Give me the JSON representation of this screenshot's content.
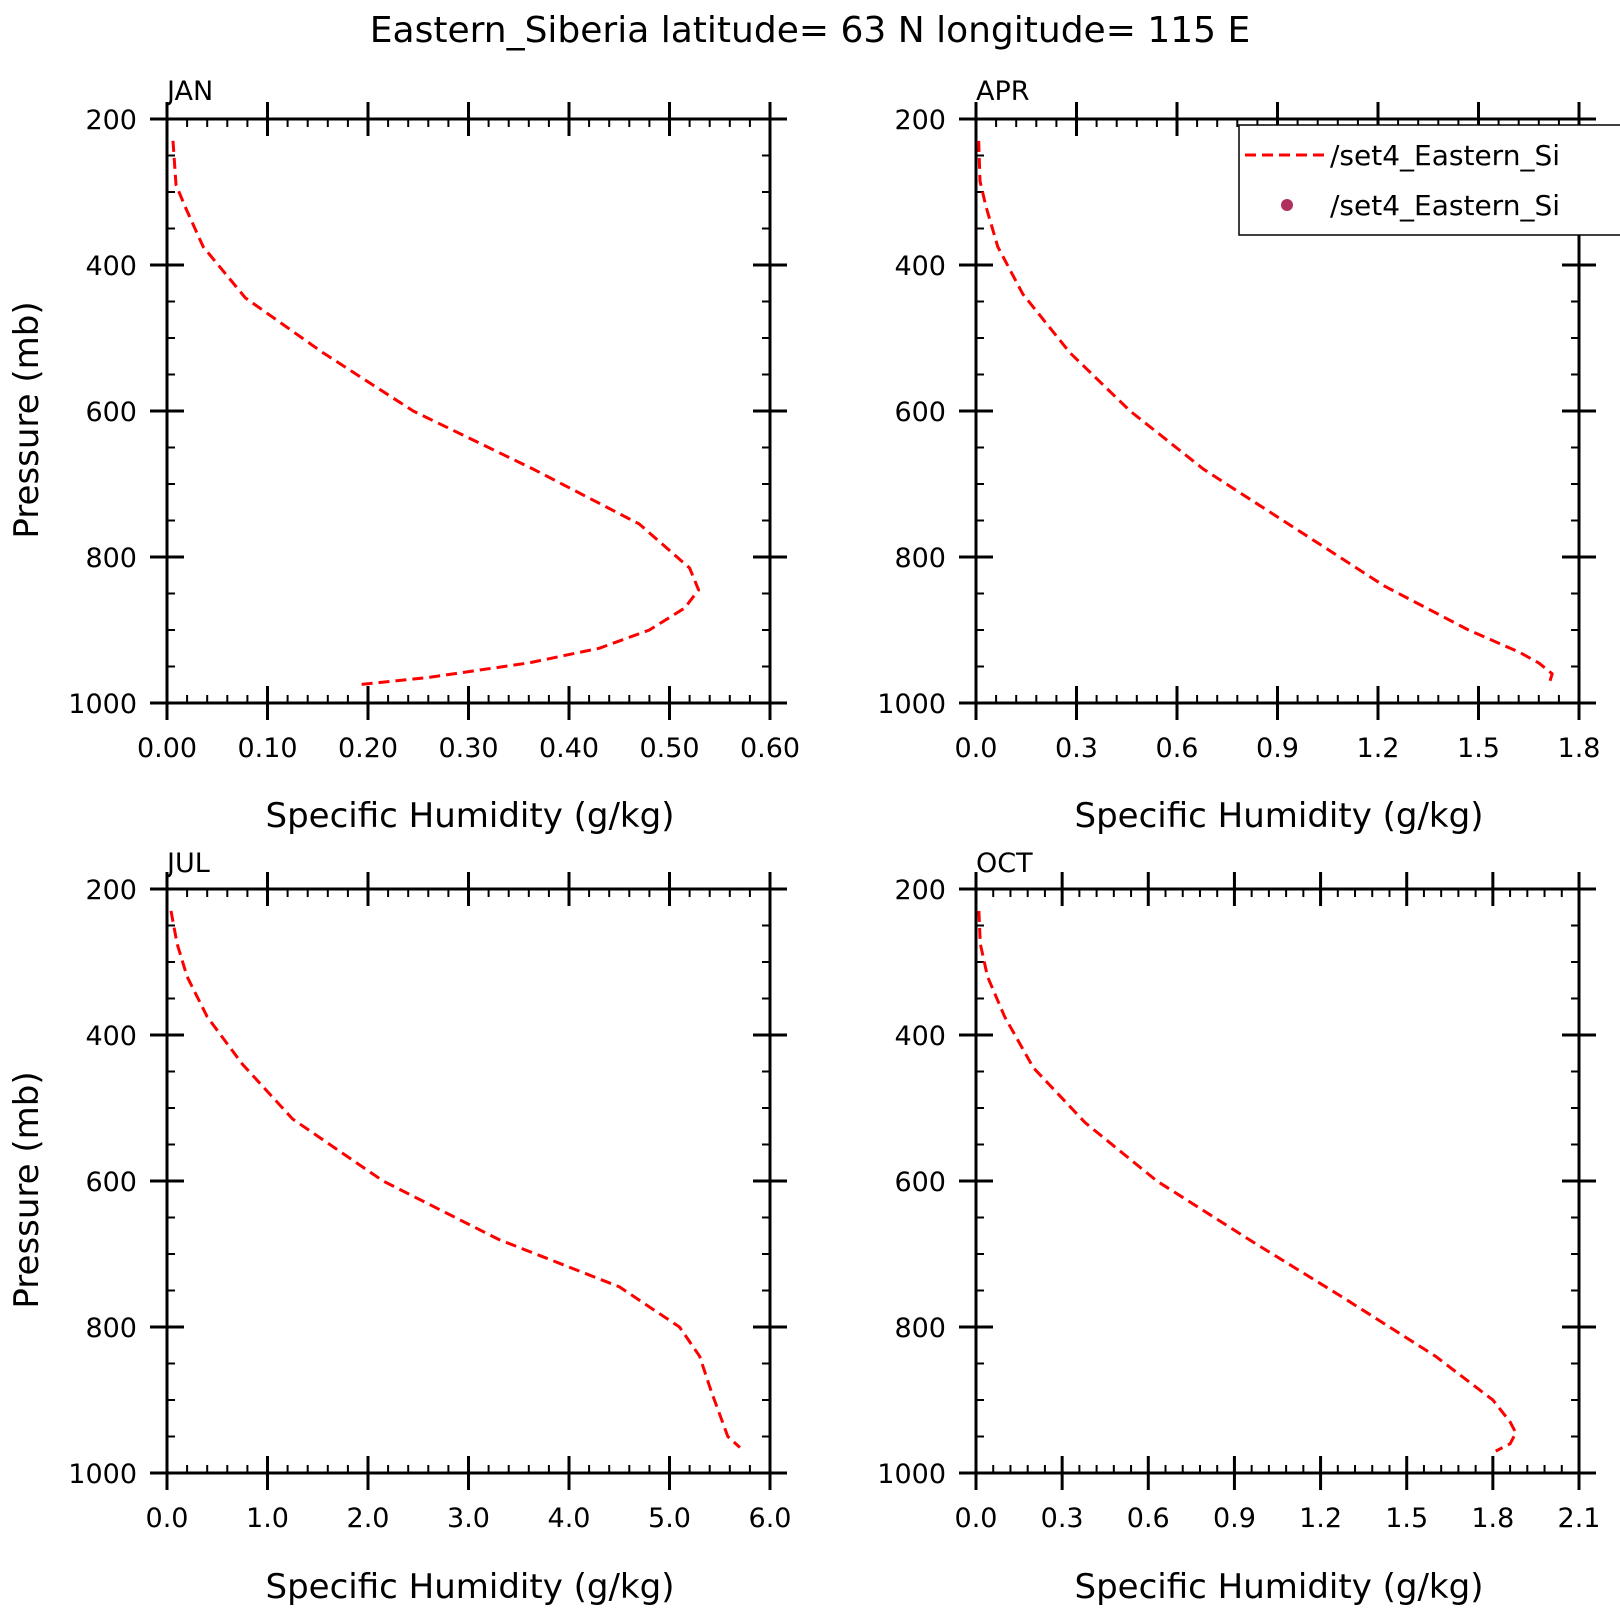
{
  "title": "Eastern_Siberia  latitude= 63 N longitude= 115 E",
  "colors": {
    "line": "#ff0000",
    "marker": "#b03060",
    "axis": "#000000"
  },
  "legend": {
    "entries": [
      {
        "label": "/set4_Eastern_Si",
        "style": "dashed-line"
      },
      {
        "label": "/set4_Eastern_Si",
        "style": "dot-marker"
      }
    ]
  },
  "chart_data": [
    {
      "type": "line",
      "panel_label": "JAN",
      "xlabel": "Specific Humidity (g/kg)",
      "ylabel": "Pressure (mb)",
      "xlim": [
        0,
        0.6
      ],
      "ylim": [
        200,
        1000
      ],
      "y_inverted": true,
      "x_ticks": [
        0,
        0.1,
        0.2,
        0.3,
        0.4,
        0.5,
        0.6
      ],
      "x_tick_labels": [
        "0.00",
        "0.10",
        "0.20",
        "0.30",
        "0.40",
        "0.50",
        "0.60"
      ],
      "y_ticks": [
        200,
        400,
        600,
        800,
        1000
      ],
      "y_tick_labels": [
        "200",
        "400",
        "600",
        "800",
        "1000"
      ],
      "series": [
        {
          "style": "dashed",
          "x": [
            0.006,
            0.009,
            0.018,
            0.036,
            0.078,
            0.155,
            0.245,
            0.365,
            0.47,
            0.52,
            0.529,
            0.515,
            0.48,
            0.43,
            0.36,
            0.26,
            0.19
          ],
          "y": [
            230,
            290,
            320,
            375,
            445,
            520,
            600,
            680,
            755,
            815,
            845,
            870,
            900,
            925,
            945,
            965,
            975
          ]
        }
      ]
    },
    {
      "type": "line",
      "panel_label": "APR",
      "xlabel": "Specific Humidity (g/kg)",
      "ylabel": "",
      "xlim": [
        0,
        1.8
      ],
      "ylim": [
        200,
        1000
      ],
      "y_inverted": true,
      "x_ticks": [
        0,
        0.3,
        0.6,
        0.9,
        1.2,
        1.5,
        1.8
      ],
      "x_tick_labels": [
        "0.0",
        "0.3",
        "0.6",
        "0.9",
        "1.2",
        "1.5",
        "1.8"
      ],
      "y_ticks": [
        200,
        400,
        600,
        800,
        1000
      ],
      "y_tick_labels": [
        "200",
        "400",
        "600",
        "800",
        "1000"
      ],
      "series": [
        {
          "style": "dashed",
          "x": [
            0.008,
            0.012,
            0.03,
            0.065,
            0.14,
            0.28,
            0.46,
            0.68,
            0.95,
            1.22,
            1.47,
            1.62,
            1.68,
            1.72,
            1.71
          ],
          "y": [
            230,
            285,
            320,
            375,
            440,
            520,
            600,
            680,
            760,
            840,
            900,
            930,
            945,
            960,
            975
          ]
        }
      ]
    },
    {
      "type": "line",
      "panel_label": "JUL",
      "xlabel": "Specific Humidity (g/kg)",
      "ylabel": "Pressure (mb)",
      "xlim": [
        0,
        6
      ],
      "ylim": [
        200,
        1000
      ],
      "y_inverted": true,
      "x_ticks": [
        0,
        1,
        2,
        3,
        4,
        5,
        6
      ],
      "x_tick_labels": [
        "0.0",
        "1.0",
        "2.0",
        "3.0",
        "4.0",
        "5.0",
        "6.0"
      ],
      "y_ticks": [
        200,
        400,
        600,
        800,
        1000
      ],
      "y_tick_labels": [
        "200",
        "400",
        "600",
        "800",
        "1000"
      ],
      "series": [
        {
          "style": "dashed",
          "x": [
            0.04,
            0.1,
            0.2,
            0.4,
            0.75,
            1.25,
            2.15,
            3.3,
            4.5,
            5.1,
            5.3,
            5.42,
            5.5,
            5.58,
            5.7
          ],
          "y": [
            230,
            275,
            320,
            375,
            440,
            515,
            600,
            680,
            745,
            800,
            840,
            890,
            920,
            950,
            965
          ]
        }
      ]
    },
    {
      "type": "line",
      "panel_label": "OCT",
      "xlabel": "Specific Humidity (g/kg)",
      "ylabel": "",
      "xlim": [
        0,
        2.1
      ],
      "ylim": [
        200,
        1000
      ],
      "y_inverted": true,
      "x_ticks": [
        0,
        0.3,
        0.6,
        0.9,
        1.2,
        1.5,
        1.8,
        2.1
      ],
      "x_tick_labels": [
        "0.0",
        "0.3",
        "0.6",
        "0.9",
        "1.2",
        "1.5",
        "1.8",
        "2.1"
      ],
      "y_ticks": [
        200,
        400,
        600,
        800,
        1000
      ],
      "y_tick_labels": [
        "200",
        "400",
        "600",
        "800",
        "1000"
      ],
      "series": [
        {
          "style": "dashed",
          "x": [
            0.01,
            0.015,
            0.04,
            0.1,
            0.2,
            0.38,
            0.63,
            0.95,
            1.28,
            1.6,
            1.8,
            1.86,
            1.88,
            1.86,
            1.81
          ],
          "y": [
            230,
            275,
            320,
            375,
            445,
            520,
            600,
            680,
            760,
            840,
            900,
            930,
            945,
            960,
            970
          ]
        }
      ]
    }
  ]
}
